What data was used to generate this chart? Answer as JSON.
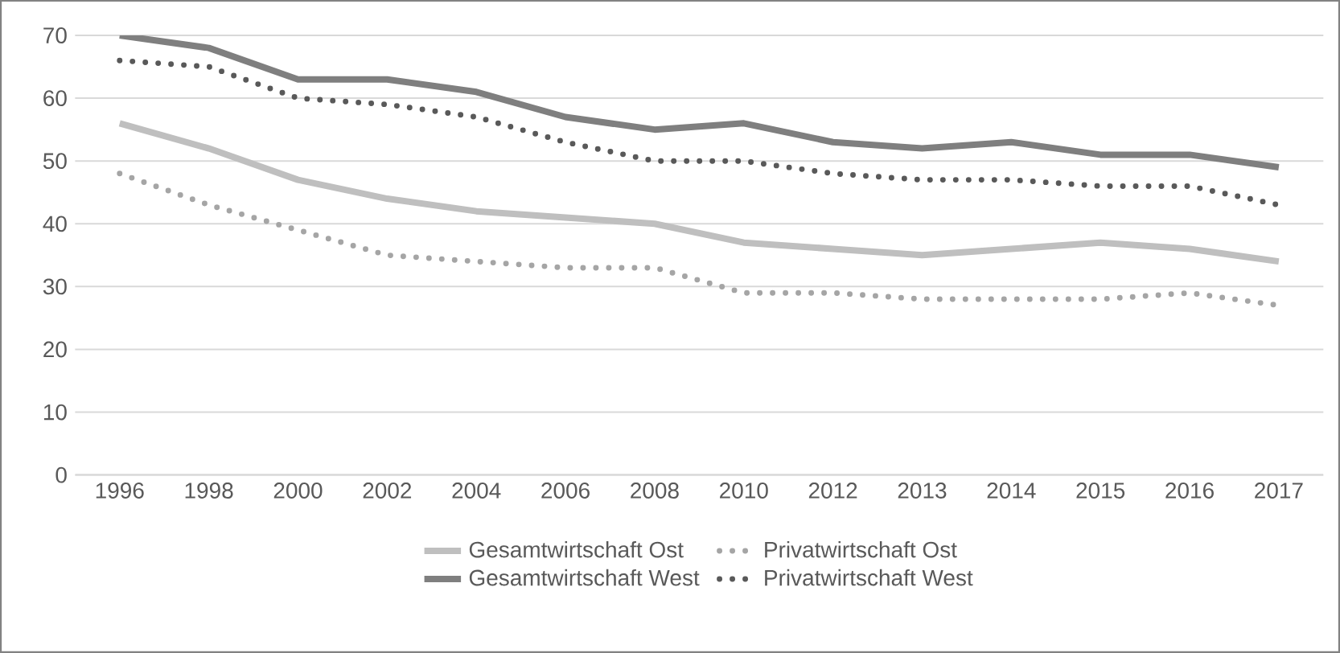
{
  "chart_data": {
    "type": "line",
    "categories": [
      "1996",
      "1998",
      "2000",
      "2002",
      "2004",
      "2006",
      "2008",
      "2010",
      "2012",
      "2013",
      "2014",
      "2015",
      "2016",
      "2017"
    ],
    "ylim": [
      0,
      70
    ],
    "yticks": [
      0,
      10,
      20,
      30,
      40,
      50,
      60,
      70
    ],
    "grid": "y",
    "legend": "bottom",
    "marker": "none",
    "series": [
      {
        "name": "Gesamtwirtschaft Ost",
        "color": "#bfbfbf",
        "line_style": "solid",
        "values": [
          56,
          52,
          47,
          44,
          42,
          41,
          40,
          37,
          36,
          35,
          36,
          37,
          36,
          34
        ]
      },
      {
        "name": "Privatwirtschaft Ost",
        "color": "#a5a5a5",
        "line_style": "dotted",
        "values": [
          48,
          43,
          39,
          35,
          34,
          33,
          33,
          29,
          29,
          28,
          28,
          28,
          29,
          27
        ]
      },
      {
        "name": "Gesamtwirtschaft West",
        "color": "#7f7f7f",
        "line_style": "solid",
        "values": [
          70,
          68,
          63,
          63,
          61,
          57,
          55,
          56,
          53,
          52,
          53,
          51,
          51,
          49
        ]
      },
      {
        "name": "Privatwirtschaft West",
        "color": "#595959",
        "line_style": "dotted",
        "values": [
          66,
          65,
          60,
          59,
          57,
          53,
          50,
          50,
          48,
          47,
          47,
          46,
          46,
          43
        ]
      }
    ]
  }
}
